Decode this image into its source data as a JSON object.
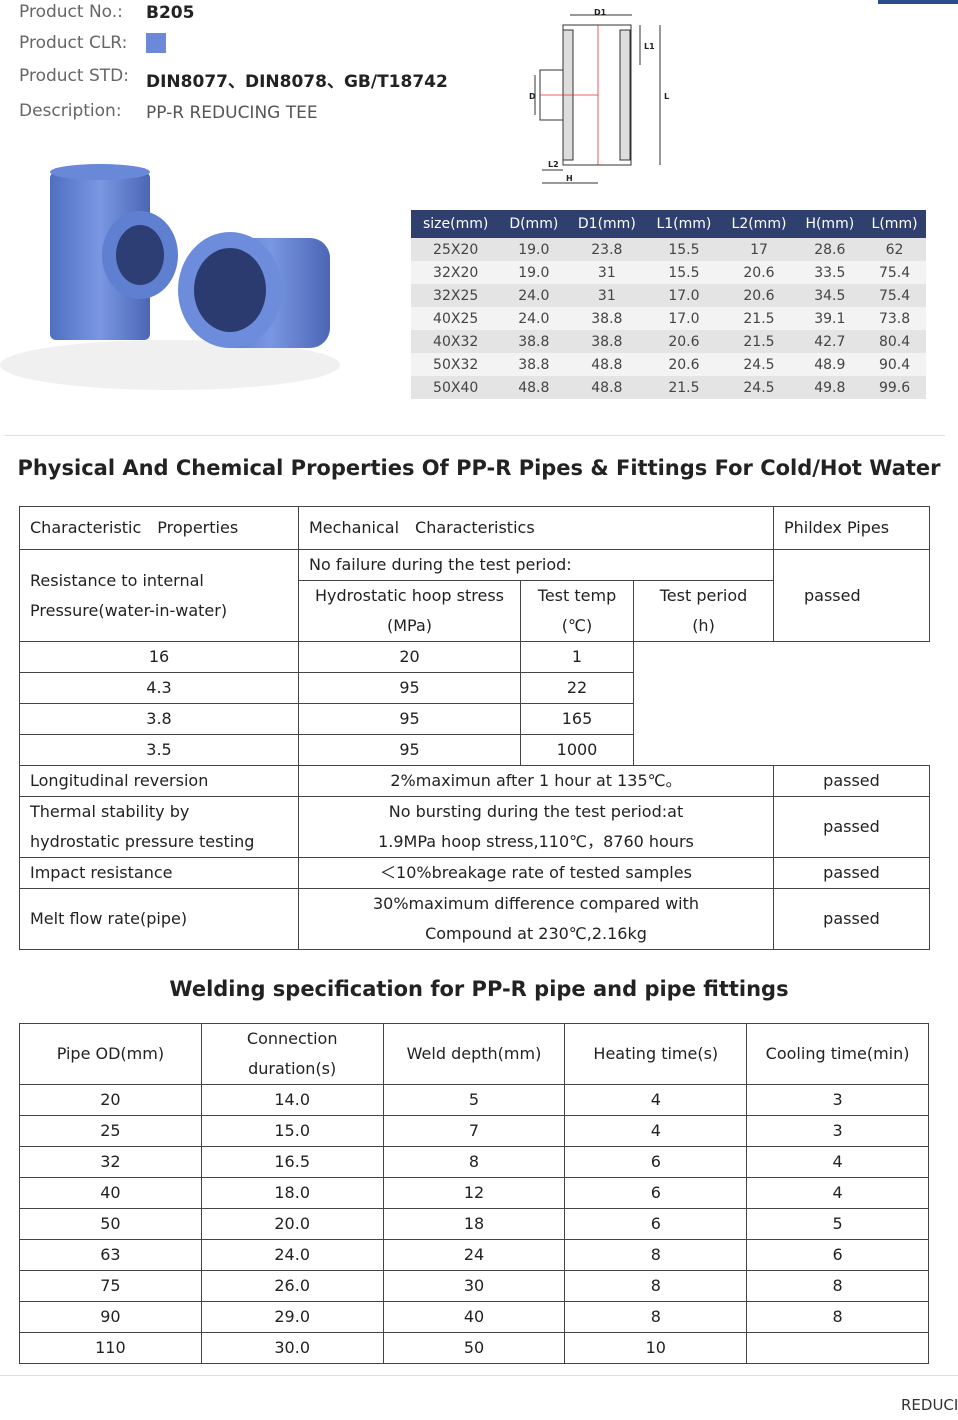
{
  "product": {
    "rows": [
      {
        "label": "Product No.:",
        "value": "B205"
      },
      {
        "label": "Product CLR:",
        "color": "#6a8ad8"
      },
      {
        "label": "Product STD:",
        "value": "DIN8077、DIN8078、GB/T18742"
      },
      {
        "label": "Description:",
        "value": "PP-R REDUCING TEE"
      }
    ]
  },
  "diagram": {
    "labels": [
      "D1",
      "L1",
      "D",
      "L",
      "L2",
      "H"
    ]
  },
  "size_table": {
    "header": [
      "size(mm)",
      "D(mm)",
      "D1(mm)",
      "L1(mm)",
      "L2(mm)",
      "H(mm)",
      "L(mm)"
    ],
    "rows": [
      [
        "25X20",
        "19.0",
        "23.8",
        "15.5",
        "17",
        "28.6",
        "62"
      ],
      [
        "32X20",
        "19.0",
        "31",
        "15.5",
        "20.6",
        "33.5",
        "75.4"
      ],
      [
        "32X25",
        "24.0",
        "31",
        "17.0",
        "20.6",
        "34.5",
        "75.4"
      ],
      [
        "40X25",
        "24.0",
        "38.8",
        "17.0",
        "21.5",
        "39.1",
        "73.8"
      ],
      [
        "40X32",
        "38.8",
        "38.8",
        "20.6",
        "21.5",
        "42.7",
        "80.4"
      ],
      [
        "50X32",
        "38.8",
        "48.8",
        "20.6",
        "24.5",
        "48.9",
        "90.4"
      ],
      [
        "50X40",
        "48.8",
        "48.8",
        "21.5",
        "24.5",
        "49.8",
        "99.6"
      ]
    ]
  },
  "properties": {
    "title": "Physical And Chemical Properties Of PP-R Pipes & Fittings For Cold/Hot Water",
    "header": [
      "Characteristic　Properties",
      "Mechanical　Characteristics",
      "Phildex Pipes"
    ],
    "pressure": {
      "name": [
        "Resistance to internal",
        "Pressure(water-in-water)"
      ],
      "note": "No failure during the test period:",
      "sub_header": [
        [
          "Hydrostatic hoop stress",
          "(MPa)"
        ],
        [
          "Test temp",
          "(℃)"
        ],
        [
          "Test period",
          "(h)"
        ]
      ],
      "rows": [
        [
          "16",
          "20",
          "1"
        ],
        [
          "4.3",
          "95",
          "22"
        ],
        [
          "3.8",
          "95",
          "165"
        ],
        [
          "3.5",
          "95",
          "1000"
        ]
      ],
      "result": "passed"
    },
    "rows": [
      {
        "name": [
          "Longitudinal reversion"
        ],
        "spec": [
          "2%maximun after 1 hour at 135℃。"
        ],
        "result": "passed"
      },
      {
        "name": [
          "Thermal stability by",
          "hydrostatic pressure testing"
        ],
        "spec": [
          "No bursting during the test period:at",
          "1.9MPa hoop stress,110℃，8760 hours"
        ],
        "result": "passed"
      },
      {
        "name": [
          "Impact resistance"
        ],
        "spec": [
          "＜10%breakage rate of tested samples"
        ],
        "result": "passed"
      },
      {
        "name": [
          "Melt flow rate(pipe)"
        ],
        "spec": [
          "30%maximum difference compared with",
          "Compound at 230℃,2.16kg"
        ],
        "result": "passed"
      }
    ]
  },
  "welding": {
    "title": "Welding specification for PP-R pipe and pipe fittings",
    "header": [
      [
        "Pipe OD(mm)"
      ],
      [
        "Connection",
        "duration(s)"
      ],
      [
        "Weld depth(mm)"
      ],
      [
        "Heating time(s)"
      ],
      [
        "Cooling time(min)"
      ]
    ],
    "rows": [
      [
        "20",
        "14.0",
        "5",
        "4",
        "3"
      ],
      [
        "25",
        "15.0",
        "7",
        "4",
        "3"
      ],
      [
        "32",
        "16.5",
        "8",
        "6",
        "4"
      ],
      [
        "40",
        "18.0",
        "12",
        "6",
        "4"
      ],
      [
        "50",
        "20.0",
        "18",
        "6",
        "5"
      ],
      [
        "63",
        "24.0",
        "24",
        "8",
        "6"
      ],
      [
        "75",
        "26.0",
        "30",
        "8",
        "8"
      ],
      [
        "90",
        "29.0",
        "40",
        "8",
        "8"
      ],
      [
        "110",
        "30.0",
        "50",
        "10",
        null
      ]
    ]
  },
  "footer": {
    "text": "REDUCI"
  }
}
